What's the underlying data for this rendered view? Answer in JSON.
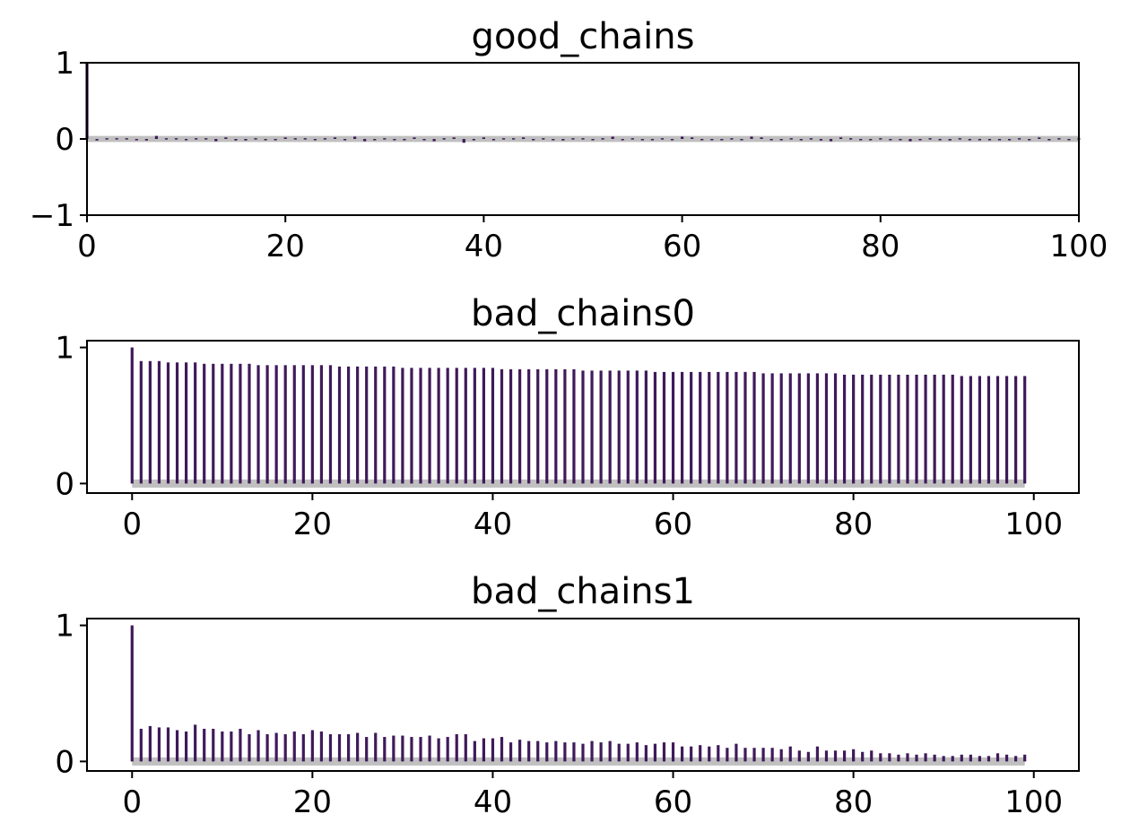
{
  "colors": {
    "bar": "#3f1a5a",
    "band": "#c0c0c0",
    "axes": "#000000",
    "background": "#ffffff"
  },
  "chart_data": [
    {
      "type": "bar",
      "title": "good_chains",
      "xlabel": "",
      "ylabel": "",
      "xlim": [
        0,
        100
      ],
      "ylim": [
        -1,
        1
      ],
      "xticks": [
        "0",
        "20",
        "40",
        "60",
        "80",
        "100"
      ],
      "xtick_values": [
        0,
        20,
        40,
        60,
        80,
        100
      ],
      "yticks": [
        "−1",
        "0",
        "1"
      ],
      "ytick_values": [
        -1,
        0,
        1
      ],
      "band_halfwidth": 0.04,
      "grid": false,
      "x": [
        0,
        1,
        2,
        3,
        4,
        5,
        6,
        7,
        8,
        9,
        10,
        11,
        12,
        13,
        14,
        15,
        16,
        17,
        18,
        19,
        20,
        21,
        22,
        23,
        24,
        25,
        26,
        27,
        28,
        29,
        30,
        31,
        32,
        33,
        34,
        35,
        36,
        37,
        38,
        39,
        40,
        41,
        42,
        43,
        44,
        45,
        46,
        47,
        48,
        49,
        50,
        51,
        52,
        53,
        54,
        55,
        56,
        57,
        58,
        59,
        60,
        61,
        62,
        63,
        64,
        65,
        66,
        67,
        68,
        69,
        70,
        71,
        72,
        73,
        74,
        75,
        76,
        77,
        78,
        79,
        80,
        81,
        82,
        83,
        84,
        85,
        86,
        87,
        88,
        89,
        90,
        91,
        92,
        93,
        94,
        95,
        96,
        97,
        98,
        99,
        100
      ],
      "values": [
        1.0,
        -0.02,
        0.01,
        0.01,
        0.01,
        -0.01,
        -0.02,
        0.04,
        0.01,
        0.01,
        0.0,
        0.01,
        0.01,
        -0.03,
        0.02,
        -0.02,
        -0.02,
        0.01,
        -0.01,
        0.0,
        0.02,
        0.01,
        0.01,
        -0.01,
        0.01,
        0.02,
        -0.01,
        0.03,
        -0.03,
        0.0,
        0.01,
        -0.01,
        0.0,
        0.02,
        -0.01,
        -0.03,
        0.01,
        0.02,
        -0.05,
        -0.01,
        0.02,
        0.0,
        0.01,
        0.01,
        0.02,
        -0.01,
        0.01,
        -0.01,
        -0.02,
        0.01,
        0.01,
        -0.01,
        0.01,
        0.03,
        0.0,
        0.01,
        -0.01,
        -0.01,
        0.01,
        0.0,
        0.03,
        0.02,
        0.0,
        0.0,
        0.0,
        0.01,
        -0.01,
        0.03,
        0.02,
        0.0,
        0.0,
        0.01,
        0.0,
        0.01,
        -0.02,
        -0.03,
        0.02,
        0.01,
        0.0,
        -0.01,
        0.01,
        0.0,
        -0.01,
        -0.03,
        0.0,
        0.01,
        0.0,
        -0.02,
        0.01,
        0.0,
        0.0,
        0.0,
        -0.01,
        0.0,
        0.01,
        -0.01,
        0.02,
        -0.01,
        0.01,
        0.0,
        0.01
      ]
    },
    {
      "type": "bar",
      "title": "bad_chains0",
      "xlabel": "",
      "ylabel": "",
      "xlim": [
        -5,
        105
      ],
      "ylim": [
        -0.07,
        1.05
      ],
      "xticks": [
        "0",
        "20",
        "40",
        "60",
        "80",
        "100"
      ],
      "xtick_values": [
        0,
        20,
        40,
        60,
        80,
        100
      ],
      "yticks": [
        "0",
        "1"
      ],
      "ytick_values": [
        0,
        1
      ],
      "band_halfwidth": 0.03,
      "grid": false,
      "x": [
        0,
        1,
        2,
        3,
        4,
        5,
        6,
        7,
        8,
        9,
        10,
        11,
        12,
        13,
        14,
        15,
        16,
        17,
        18,
        19,
        20,
        21,
        22,
        23,
        24,
        25,
        26,
        27,
        28,
        29,
        30,
        31,
        32,
        33,
        34,
        35,
        36,
        37,
        38,
        39,
        40,
        41,
        42,
        43,
        44,
        45,
        46,
        47,
        48,
        49,
        50,
        51,
        52,
        53,
        54,
        55,
        56,
        57,
        58,
        59,
        60,
        61,
        62,
        63,
        64,
        65,
        66,
        67,
        68,
        69,
        70,
        71,
        72,
        73,
        74,
        75,
        76,
        77,
        78,
        79,
        80,
        81,
        82,
        83,
        84,
        85,
        86,
        87,
        88,
        89,
        90,
        91,
        92,
        93,
        94,
        95,
        96,
        97,
        98,
        99
      ],
      "values": [
        1.0,
        0.9,
        0.9,
        0.9,
        0.89,
        0.89,
        0.89,
        0.89,
        0.88,
        0.88,
        0.88,
        0.88,
        0.88,
        0.88,
        0.87,
        0.87,
        0.87,
        0.87,
        0.87,
        0.87,
        0.87,
        0.87,
        0.87,
        0.86,
        0.86,
        0.86,
        0.86,
        0.86,
        0.86,
        0.86,
        0.85,
        0.85,
        0.85,
        0.85,
        0.85,
        0.85,
        0.85,
        0.85,
        0.85,
        0.85,
        0.85,
        0.84,
        0.84,
        0.84,
        0.84,
        0.84,
        0.84,
        0.84,
        0.84,
        0.84,
        0.83,
        0.83,
        0.83,
        0.83,
        0.83,
        0.83,
        0.83,
        0.83,
        0.82,
        0.82,
        0.82,
        0.82,
        0.82,
        0.82,
        0.82,
        0.82,
        0.82,
        0.82,
        0.82,
        0.82,
        0.81,
        0.81,
        0.81,
        0.81,
        0.81,
        0.81,
        0.81,
        0.81,
        0.81,
        0.8,
        0.8,
        0.8,
        0.8,
        0.8,
        0.8,
        0.8,
        0.8,
        0.8,
        0.8,
        0.8,
        0.8,
        0.8,
        0.79,
        0.79,
        0.79,
        0.79,
        0.79,
        0.79,
        0.79,
        0.79
      ]
    },
    {
      "type": "bar",
      "title": "bad_chains1",
      "xlabel": "",
      "ylabel": "",
      "xlim": [
        -5,
        105
      ],
      "ylim": [
        -0.07,
        1.05
      ],
      "xticks": [
        "0",
        "20",
        "40",
        "60",
        "80",
        "100"
      ],
      "xtick_values": [
        0,
        20,
        40,
        60,
        80,
        100
      ],
      "yticks": [
        "0",
        "1"
      ],
      "ytick_values": [
        0,
        1
      ],
      "band_halfwidth": 0.03,
      "grid": false,
      "x": [
        0,
        1,
        2,
        3,
        4,
        5,
        6,
        7,
        8,
        9,
        10,
        11,
        12,
        13,
        14,
        15,
        16,
        17,
        18,
        19,
        20,
        21,
        22,
        23,
        24,
        25,
        26,
        27,
        28,
        29,
        30,
        31,
        32,
        33,
        34,
        35,
        36,
        37,
        38,
        39,
        40,
        41,
        42,
        43,
        44,
        45,
        46,
        47,
        48,
        49,
        50,
        51,
        52,
        53,
        54,
        55,
        56,
        57,
        58,
        59,
        60,
        61,
        62,
        63,
        64,
        65,
        66,
        67,
        68,
        69,
        70,
        71,
        72,
        73,
        74,
        75,
        76,
        77,
        78,
        79,
        80,
        81,
        82,
        83,
        84,
        85,
        86,
        87,
        88,
        89,
        90,
        91,
        92,
        93,
        94,
        95,
        96,
        97,
        98,
        99
      ],
      "values": [
        1.0,
        0.24,
        0.26,
        0.25,
        0.25,
        0.23,
        0.22,
        0.27,
        0.24,
        0.24,
        0.22,
        0.22,
        0.24,
        0.2,
        0.23,
        0.2,
        0.21,
        0.2,
        0.22,
        0.2,
        0.23,
        0.22,
        0.2,
        0.2,
        0.2,
        0.21,
        0.18,
        0.21,
        0.18,
        0.19,
        0.19,
        0.18,
        0.18,
        0.19,
        0.17,
        0.18,
        0.2,
        0.2,
        0.15,
        0.17,
        0.17,
        0.18,
        0.14,
        0.16,
        0.15,
        0.15,
        0.14,
        0.15,
        0.14,
        0.14,
        0.13,
        0.15,
        0.14,
        0.15,
        0.13,
        0.13,
        0.14,
        0.12,
        0.13,
        0.14,
        0.14,
        0.11,
        0.11,
        0.12,
        0.11,
        0.12,
        0.1,
        0.13,
        0.1,
        0.1,
        0.1,
        0.1,
        0.09,
        0.11,
        0.08,
        0.07,
        0.11,
        0.08,
        0.08,
        0.08,
        0.09,
        0.07,
        0.08,
        0.06,
        0.06,
        0.05,
        0.06,
        0.05,
        0.06,
        0.05,
        0.04,
        0.04,
        0.05,
        0.05,
        0.04,
        0.04,
        0.06,
        0.05,
        0.04,
        0.05
      ]
    }
  ]
}
